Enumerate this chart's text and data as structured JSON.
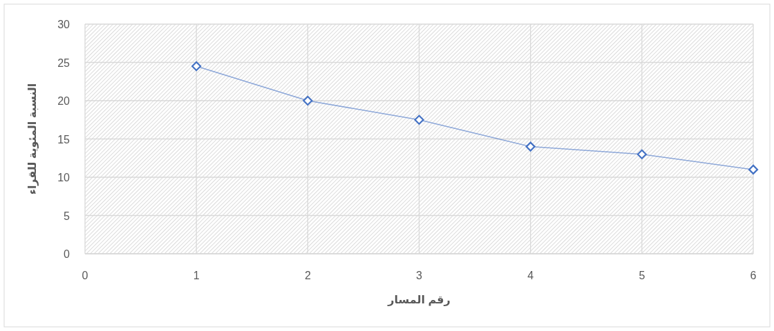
{
  "chart_data": {
    "type": "line",
    "xlabel": "رقم المسار",
    "ylabel": "النسبة المئوية للقراء",
    "x": [
      1,
      2,
      3,
      4,
      5,
      6
    ],
    "series": [
      {
        "color": "#4472c4",
        "values": [
          24.5,
          20,
          17.5,
          14,
          13,
          11
        ]
      }
    ],
    "xlim": [
      0,
      6
    ],
    "ylim": [
      0,
      30
    ],
    "xticks": [
      0,
      1,
      2,
      3,
      4,
      5,
      6
    ],
    "yticks": [
      0,
      5,
      10,
      15,
      20,
      25,
      30
    ],
    "grid": true,
    "marker": "diamond",
    "line_style": "solid"
  }
}
